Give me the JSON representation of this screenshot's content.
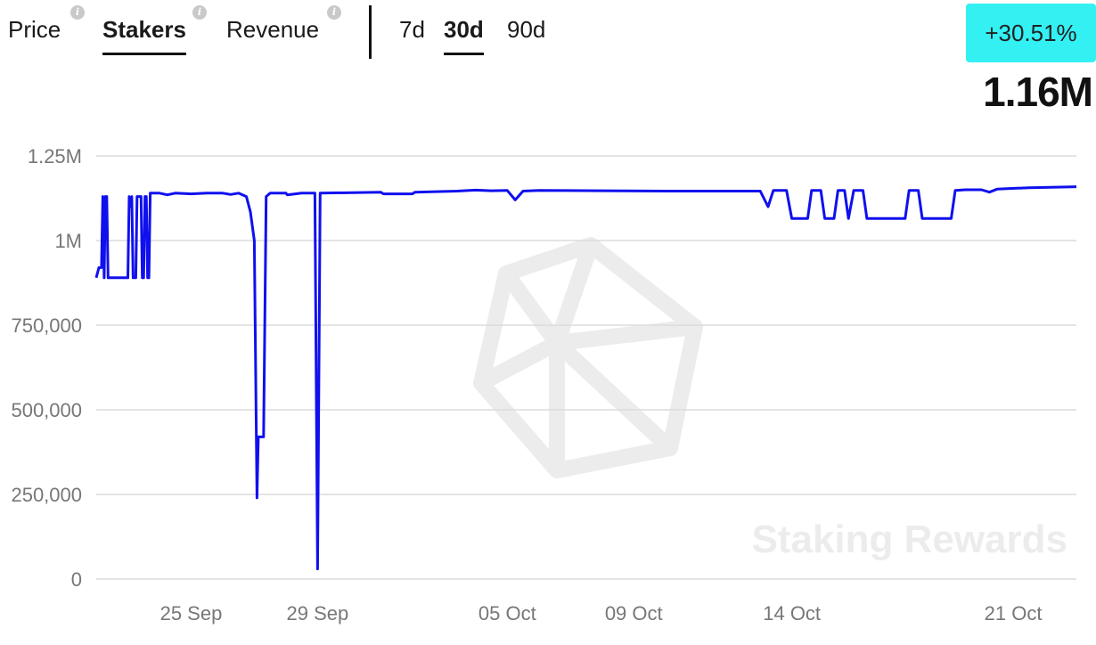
{
  "tabs": {
    "metrics": [
      {
        "label": "Price",
        "active": false,
        "info": "i"
      },
      {
        "label": "Stakers",
        "active": true,
        "info": "i"
      },
      {
        "label": "Revenue",
        "active": false,
        "info": "i"
      }
    ],
    "periods": [
      {
        "label": "7d",
        "active": false
      },
      {
        "label": "30d",
        "active": true
      },
      {
        "label": "90d",
        "active": false
      }
    ]
  },
  "summary": {
    "change": "+30.51%",
    "value": "1.16M",
    "change_color": "#33f0f3"
  },
  "watermark": "Staking Rewards",
  "chart_data": {
    "type": "line",
    "title": "",
    "xlabel": "",
    "ylabel": "",
    "ylim": [
      0,
      1250000
    ],
    "y_ticks": [
      {
        "value": 0,
        "label": "0"
      },
      {
        "value": 250000,
        "label": "250,000"
      },
      {
        "value": 500000,
        "label": "500,000"
      },
      {
        "value": 750000,
        "label": "750,000"
      },
      {
        "value": 1000000,
        "label": "1M"
      },
      {
        "value": 1250000,
        "label": "1.25M"
      }
    ],
    "x_range": [
      "2023-09-22",
      "2023-10-23"
    ],
    "x_ticks": [
      {
        "date": "2023-09-25",
        "label": "25 Sep"
      },
      {
        "date": "2023-09-29",
        "label": "29 Sep"
      },
      {
        "date": "2023-10-05",
        "label": "05 Oct"
      },
      {
        "date": "2023-10-09",
        "label": "09 Oct"
      },
      {
        "date": "2023-10-14",
        "label": "14 Oct"
      },
      {
        "date": "2023-10-21",
        "label": "21 Oct"
      }
    ],
    "grid": true,
    "line_color": "#1010ee",
    "series": [
      {
        "points": [
          [
            "2023-09-22T00:00",
            890000
          ],
          [
            "2023-09-22T02:00",
            920000
          ],
          [
            "2023-09-22T04:00",
            920000
          ],
          [
            "2023-09-22T05:00",
            1130000
          ],
          [
            "2023-09-22T06:00",
            890000
          ],
          [
            "2023-09-22T07:00",
            1130000
          ],
          [
            "2023-09-22T08:00",
            1130000
          ],
          [
            "2023-09-22T09:00",
            890000
          ],
          [
            "2023-09-22T13:00",
            890000
          ],
          [
            "2023-09-22T18:00",
            890000
          ],
          [
            "2023-09-23T00:00",
            890000
          ],
          [
            "2023-09-23T01:00",
            1130000
          ],
          [
            "2023-09-23T02:00",
            1100000
          ],
          [
            "2023-09-23T03:00",
            1130000
          ],
          [
            "2023-09-23T04:00",
            890000
          ],
          [
            "2023-09-23T06:00",
            890000
          ],
          [
            "2023-09-23T07:00",
            1130000
          ],
          [
            "2023-09-23T10:00",
            1130000
          ],
          [
            "2023-09-23T11:00",
            890000
          ],
          [
            "2023-09-23T12:00",
            890000
          ],
          [
            "2023-09-23T13:00",
            1130000
          ],
          [
            "2023-09-23T14:00",
            1130000
          ],
          [
            "2023-09-23T15:00",
            890000
          ],
          [
            "2023-09-23T16:00",
            890000
          ],
          [
            "2023-09-23T17:00",
            1140000
          ],
          [
            "2023-09-24T00:00",
            1140000
          ],
          [
            "2023-09-24T06:00",
            1135000
          ],
          [
            "2023-09-24T12:00",
            1140000
          ],
          [
            "2023-09-25T00:00",
            1138000
          ],
          [
            "2023-09-25T12:00",
            1140000
          ],
          [
            "2023-09-26T00:00",
            1140000
          ],
          [
            "2023-09-26T06:00",
            1136000
          ],
          [
            "2023-09-26T12:00",
            1140000
          ],
          [
            "2023-09-26T18:00",
            1130000
          ],
          [
            "2023-09-26T21:00",
            1085000
          ],
          [
            "2023-09-27T00:00",
            1000000
          ],
          [
            "2023-09-27T02:00",
            240000
          ],
          [
            "2023-09-27T03:00",
            420000
          ],
          [
            "2023-09-27T07:00",
            420000
          ],
          [
            "2023-09-27T09:00",
            1130000
          ],
          [
            "2023-09-27T12:00",
            1140000
          ],
          [
            "2023-09-28T00:00",
            1140000
          ],
          [
            "2023-09-28T01:00",
            1135000
          ],
          [
            "2023-09-28T12:00",
            1140000
          ],
          [
            "2023-09-28T22:00",
            1140000
          ],
          [
            "2023-09-29T00:00",
            30000
          ],
          [
            "2023-09-29T02:00",
            1140000
          ],
          [
            "2023-10-01T00:00",
            1143000
          ],
          [
            "2023-10-01T02:00",
            1138000
          ],
          [
            "2023-10-02T00:00",
            1138000
          ],
          [
            "2023-10-02T02:00",
            1143000
          ],
          [
            "2023-10-03T10:00",
            1146000
          ],
          [
            "2023-10-04T00:00",
            1149000
          ],
          [
            "2023-10-04T12:00",
            1147000
          ],
          [
            "2023-10-05T00:00",
            1148000
          ],
          [
            "2023-10-05T06:00",
            1120000
          ],
          [
            "2023-10-05T12:00",
            1146000
          ],
          [
            "2023-10-06T00:00",
            1148000
          ],
          [
            "2023-10-08T00:00",
            1147000
          ],
          [
            "2023-10-10T00:00",
            1146000
          ],
          [
            "2023-10-12T00:00",
            1146000
          ],
          [
            "2023-10-13T00:00",
            1146000
          ],
          [
            "2023-10-13T06:00",
            1100000
          ],
          [
            "2023-10-13T10:00",
            1148000
          ],
          [
            "2023-10-13T20:00",
            1148000
          ],
          [
            "2023-10-14T00:00",
            1065000
          ],
          [
            "2023-10-14T12:00",
            1065000
          ],
          [
            "2023-10-14T15:00",
            1148000
          ],
          [
            "2023-10-14T22:00",
            1148000
          ],
          [
            "2023-10-15T01:00",
            1065000
          ],
          [
            "2023-10-15T08:00",
            1065000
          ],
          [
            "2023-10-15T11:00",
            1148000
          ],
          [
            "2023-10-15T16:00",
            1148000
          ],
          [
            "2023-10-15T19:00",
            1065000
          ],
          [
            "2023-10-15T23:00",
            1148000
          ],
          [
            "2023-10-16T06:00",
            1148000
          ],
          [
            "2023-10-16T09:00",
            1065000
          ],
          [
            "2023-10-17T14:00",
            1065000
          ],
          [
            "2023-10-17T17:00",
            1148000
          ],
          [
            "2023-10-18T00:00",
            1148000
          ],
          [
            "2023-10-18T03:00",
            1065000
          ],
          [
            "2023-10-19T01:00",
            1065000
          ],
          [
            "2023-10-19T04:00",
            1148000
          ],
          [
            "2023-10-19T12:00",
            1150000
          ],
          [
            "2023-10-20T00:00",
            1150000
          ],
          [
            "2023-10-20T06:00",
            1143000
          ],
          [
            "2023-10-20T12:00",
            1152000
          ],
          [
            "2023-10-21T12:00",
            1156000
          ],
          [
            "2023-10-22T12:00",
            1158000
          ],
          [
            "2023-10-23T00:00",
            1159000
          ]
        ]
      }
    ]
  }
}
